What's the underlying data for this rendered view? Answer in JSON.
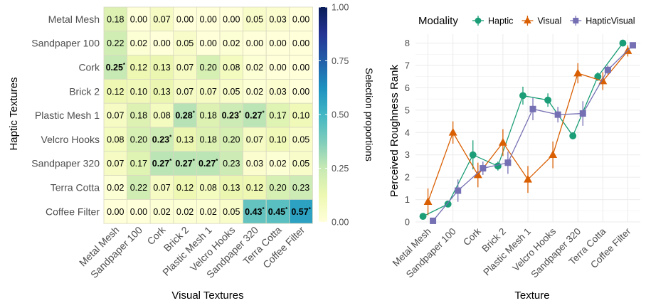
{
  "chart_data": [
    {
      "type": "heatmap",
      "xlabel": "Visual Textures",
      "ylabel": "Haptic Textures",
      "legend_title": "Selection proportions",
      "legend_ticks": [
        "0.00",
        "0.25",
        "0.50",
        "0.75",
        "1.00"
      ],
      "legend_range": [
        0,
        1
      ],
      "legend_placement": "right",
      "colors": [
        "#ffffd9",
        "#edf8b1",
        "#c7e9b4",
        "#7fcdbb",
        "#41b6c4",
        "#1d91c0",
        "#225ea8",
        "#253494",
        "#081d58"
      ],
      "x_categories": [
        "Metal Mesh",
        "Sandpaper 100",
        "Cork",
        "Brick 2",
        "Plastic Mesh 1",
        "Velcro Hooks",
        "Sandpaper 320",
        "Terra Cotta",
        "Coffee Filter"
      ],
      "y_categories": [
        "Metal Mesh",
        "Sandpaper 100",
        "Cork",
        "Brick 2",
        "Plastic Mesh 1",
        "Velcro Hooks",
        "Sandpaper 320",
        "Terra Cotta",
        "Coffee Filter"
      ],
      "values": [
        [
          0.18,
          0.0,
          0.07,
          0.0,
          0.0,
          0.0,
          0.05,
          0.03,
          0.0
        ],
        [
          0.22,
          0.02,
          0.0,
          0.05,
          0.0,
          0.02,
          0.0,
          0.0,
          0.0
        ],
        [
          0.25,
          0.12,
          0.13,
          0.07,
          0.2,
          0.08,
          0.02,
          0.0,
          0.0
        ],
        [
          0.12,
          0.1,
          0.13,
          0.07,
          0.07,
          0.05,
          0.02,
          0.03,
          0.0
        ],
        [
          0.07,
          0.18,
          0.08,
          0.28,
          0.18,
          0.23,
          0.27,
          0.17,
          0.1
        ],
        [
          0.08,
          0.2,
          0.23,
          0.13,
          0.18,
          0.2,
          0.07,
          0.1,
          0.05
        ],
        [
          0.07,
          0.17,
          0.27,
          0.27,
          0.27,
          0.23,
          0.03,
          0.02,
          0.05
        ],
        [
          0.02,
          0.22,
          0.07,
          0.12,
          0.08,
          0.13,
          0.12,
          0.2,
          0.23
        ],
        [
          0.0,
          0.0,
          0.02,
          0.02,
          0.02,
          0.05,
          0.43,
          0.45,
          0.57
        ]
      ],
      "significant": [
        [
          2,
          0
        ],
        [
          4,
          3
        ],
        [
          4,
          5
        ],
        [
          4,
          6
        ],
        [
          5,
          2
        ],
        [
          6,
          2
        ],
        [
          6,
          3
        ],
        [
          6,
          4
        ],
        [
          8,
          6
        ],
        [
          8,
          7
        ],
        [
          8,
          8
        ]
      ],
      "significance_marker": "*"
    },
    {
      "type": "line",
      "xlabel": "Texture",
      "ylabel": "Perceived Roughness Rank",
      "ylim": [
        0,
        8.4
      ],
      "y_ticks": [
        0,
        1,
        2,
        3,
        4,
        5,
        6,
        7,
        8
      ],
      "grid": true,
      "legend_title": "Modality",
      "legend_placement": "top",
      "categories": [
        "Metal Mesh",
        "Sandpaper 100",
        "Cork",
        "Brick 2",
        "Plastic Mesh 1",
        "Velcro Hooks",
        "Sandpaper 320",
        "Terra Cotta",
        "Coffee Filter"
      ],
      "series": [
        {
          "name": "Haptic",
          "color": "#1b9e77",
          "marker": "circle",
          "offset": -0.2,
          "values": [
            0.25,
            0.8,
            3.0,
            2.5,
            5.65,
            5.45,
            3.85,
            6.5,
            8.0
          ],
          "err": [
            0.15,
            0.15,
            0.65,
            0.2,
            0.4,
            0.3,
            0.05,
            0.2,
            0.05
          ]
        },
        {
          "name": "Visual",
          "color": "#d95f02",
          "marker": "triangle",
          "offset": 0.0,
          "values": [
            0.9,
            4.0,
            2.1,
            3.55,
            1.9,
            3.0,
            6.65,
            6.3,
            7.65
          ],
          "err": [
            0.6,
            0.5,
            0.55,
            0.6,
            0.6,
            0.6,
            0.45,
            0.4,
            0.25
          ]
        },
        {
          "name": "HapticVisual",
          "color": "#7570b3",
          "marker": "square",
          "offset": 0.2,
          "values": [
            0.05,
            1.4,
            2.4,
            2.65,
            5.05,
            4.8,
            4.85,
            6.8,
            7.9
          ],
          "err": [
            0.05,
            0.5,
            0.3,
            0.5,
            0.5,
            0.35,
            0.55,
            0.2,
            0.05
          ]
        }
      ]
    }
  ]
}
